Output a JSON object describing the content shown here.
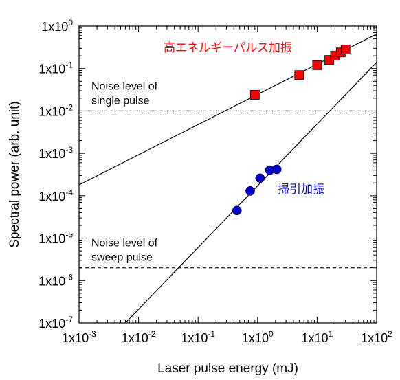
{
  "chart_data": {
    "type": "scatter",
    "xlabel": "Laser pulse energy (mJ)",
    "ylabel": "Spectral power (arb. unit)",
    "xscale": "log",
    "yscale": "log",
    "xlim": [
      0.001,
      100
    ],
    "ylim": [
      1e-07,
      1
    ],
    "xticks": [
      {
        "value": 0.001,
        "base": "1x10",
        "exp": "-3"
      },
      {
        "value": 0.01,
        "base": "1x10",
        "exp": "-2"
      },
      {
        "value": 0.1,
        "base": "1x10",
        "exp": "-1"
      },
      {
        "value": 1,
        "base": "1x10",
        "exp": "0"
      },
      {
        "value": 10,
        "base": "1x10",
        "exp": "1"
      },
      {
        "value": 100,
        "base": "1x10",
        "exp": "2"
      }
    ],
    "yticks": [
      {
        "value": 1,
        "base": "1x10",
        "exp": "0"
      },
      {
        "value": 0.1,
        "base": "1x10",
        "exp": "-1"
      },
      {
        "value": 0.01,
        "base": "1x10",
        "exp": "-2"
      },
      {
        "value": 0.001,
        "base": "1x10",
        "exp": "-3"
      },
      {
        "value": 0.0001,
        "base": "1x10",
        "exp": "-4"
      },
      {
        "value": 1e-05,
        "base": "1x10",
        "exp": "-5"
      },
      {
        "value": 1e-06,
        "base": "1x10",
        "exp": "-6"
      },
      {
        "value": 1e-07,
        "base": "1x10",
        "exp": "-7"
      }
    ],
    "series": [
      {
        "name": "高エネルギーパルス加振",
        "marker": "square",
        "color": "#ff0000",
        "points": [
          {
            "x": 0.9,
            "y": 0.024
          },
          {
            "x": 5,
            "y": 0.07
          },
          {
            "x": 10,
            "y": 0.12
          },
          {
            "x": 16,
            "y": 0.16
          },
          {
            "x": 20,
            "y": 0.2
          },
          {
            "x": 25,
            "y": 0.24
          },
          {
            "x": 30,
            "y": 0.28
          }
        ],
        "fit": {
          "x": [
            0.001,
            100
          ],
          "y": [
            0.00018,
            0.65
          ]
        }
      },
      {
        "name": "掃引加振",
        "marker": "circle",
        "color": "#0000cc",
        "points": [
          {
            "x": 0.45,
            "y": 4.5e-05
          },
          {
            "x": 0.75,
            "y": 0.00013
          },
          {
            "x": 1.1,
            "y": 0.00026
          },
          {
            "x": 1.6,
            "y": 0.0004
          },
          {
            "x": 2.1,
            "y": 0.00042
          }
        ],
        "fit": {
          "x": [
            0.006,
            100
          ],
          "y": [
            1e-07,
            0.14
          ]
        }
      }
    ],
    "reference_lines": [
      {
        "y": 0.01,
        "style": "dashed",
        "label_lines": [
          "Noise level of",
          "single pulse"
        ]
      },
      {
        "y": 2e-06,
        "style": "dashed",
        "label_lines": [
          "Noise level of",
          "sweep pulse"
        ]
      }
    ],
    "grid": false,
    "legend": "none"
  }
}
